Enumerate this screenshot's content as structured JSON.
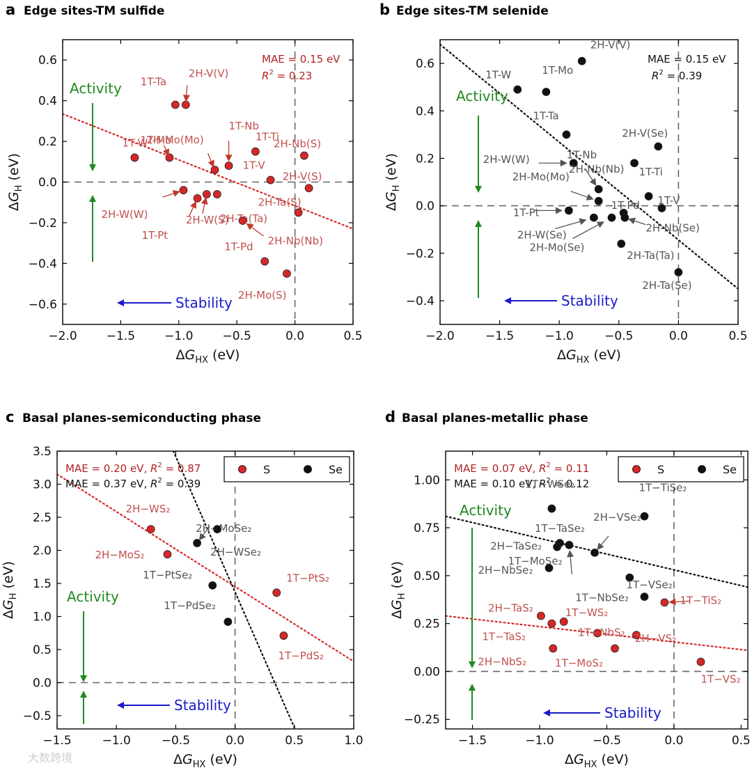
{
  "watermark": "大数跨境",
  "chart_data": [
    {
      "type": "scatter",
      "letter": "a",
      "title": "Edge sites-TM sulfide",
      "xlabel": "ΔG_HX (eV)",
      "ylabel": "ΔG_H (eV)",
      "xlim": [
        -2.0,
        0.5
      ],
      "ylim": [
        -0.7,
        0.7
      ],
      "xticks": [
        -2.0,
        -1.5,
        -1.0,
        -0.5,
        0.0,
        0.5
      ],
      "xtick_labels": [
        "−2.0",
        "−1.5",
        "−1.0",
        "−0.5",
        "0.0",
        "0.5"
      ],
      "yticks": [
        -0.6,
        -0.4,
        -0.2,
        0.0,
        0.2,
        0.4,
        0.6
      ],
      "ytick_labels": [
        "−0.6",
        "−0.4",
        "−0.2",
        "0.0",
        "0.2",
        "0.4",
        "0.6"
      ],
      "mae": "MAE = 0.15 eV",
      "r2": "= 0.23",
      "stat_color": "#b22222",
      "activity": "Activity",
      "stability": "Stability",
      "fit_color": "#d62728",
      "fit_line": [
        [
          -2.0,
          0.335
        ],
        [
          0.5,
          -0.23
        ]
      ],
      "points": [
        {
          "label": "1T-W",
          "x": -1.38,
          "y": 0.12,
          "color": "#d62728"
        },
        {
          "label": "1T-Mo",
          "x": -1.08,
          "y": 0.12,
          "color": "#d62728"
        },
        {
          "label": "1T-Ta",
          "x": -1.03,
          "y": 0.38,
          "color": "#d62728"
        },
        {
          "label": "2H-V(V)",
          "x": -0.94,
          "y": 0.38,
          "color": "#d62728"
        },
        {
          "label": "2H-Mo(Mo)",
          "x": -0.69,
          "y": 0.06,
          "color": "#d62728"
        },
        {
          "label": "1T-Nb",
          "x": -0.57,
          "y": 0.08,
          "color": "#d62728"
        },
        {
          "label": "1T-Ti",
          "x": -0.34,
          "y": 0.15,
          "color": "#d62728"
        },
        {
          "label": "2H-Nb(S)",
          "x": 0.08,
          "y": 0.13,
          "color": "#d62728"
        },
        {
          "label": "1T-V",
          "x": -0.21,
          "y": 0.01,
          "color": "#d62728"
        },
        {
          "label": "2H-V(S)",
          "x": 0.12,
          "y": -0.03,
          "color": "#d62728"
        },
        {
          "label": "2H-W(W)",
          "x": -0.96,
          "y": -0.04,
          "color": "#d62728"
        },
        {
          "label": "1T-Pt",
          "x": -0.84,
          "y": -0.08,
          "color": "#d62728"
        },
        {
          "label": "2H-W(S)",
          "x": -0.76,
          "y": -0.06,
          "color": "#d62728"
        },
        {
          "label": "2H-Ta(Ta)",
          "x": -0.67,
          "y": -0.06,
          "color": "#d62728"
        },
        {
          "label": "2H-Ta(S)",
          "x": 0.03,
          "y": -0.15,
          "color": "#d62728"
        },
        {
          "label": "2H-Nb(Nb)",
          "x": -0.45,
          "y": -0.19,
          "color": "#d62728"
        },
        {
          "label": "1T-Pd",
          "x": -0.26,
          "y": -0.39,
          "color": "#d62728"
        },
        {
          "label": "2H-Mo(S)",
          "x": -0.07,
          "y": -0.45,
          "color": "#d62728"
        }
      ]
    },
    {
      "type": "scatter",
      "letter": "b",
      "title": "Edge sites-TM selenide",
      "xlabel": "ΔG_HX (eV)",
      "ylabel": "ΔG_H (eV)",
      "xlim": [
        -2.0,
        0.5
      ],
      "ylim": [
        -0.5,
        0.7
      ],
      "xticks": [
        -2.0,
        -1.5,
        -1.0,
        -0.5,
        0.0,
        0.5
      ],
      "xtick_labels": [
        "−2.0",
        "−1.5",
        "−1.0",
        "−0.5",
        "0.0",
        "0.5"
      ],
      "yticks": [
        -0.4,
        -0.2,
        0.0,
        0.2,
        0.4,
        0.6
      ],
      "ytick_labels": [
        "−0.4",
        "−0.2",
        "0.0",
        "0.2",
        "0.4",
        "0.6"
      ],
      "mae": "MAE = 0.15 eV",
      "r2": "= 0.39",
      "stat_color": "#111111",
      "activity": "Activity",
      "stability": "Stability",
      "fit_color": "#111111",
      "fit_line": [
        [
          -2.0,
          0.68
        ],
        [
          0.5,
          -0.35
        ]
      ],
      "points": [
        {
          "label": "2H-V(V)",
          "x": -0.81,
          "y": 0.61,
          "color": "#111111"
        },
        {
          "label": "1T-W",
          "x": -1.35,
          "y": 0.49,
          "color": "#111111"
        },
        {
          "label": "1T-Mo",
          "x": -1.11,
          "y": 0.48,
          "color": "#111111"
        },
        {
          "label": "1T-Ta",
          "x": -0.94,
          "y": 0.3,
          "color": "#111111"
        },
        {
          "label": "2H-V(Se)",
          "x": -0.17,
          "y": 0.25,
          "color": "#111111"
        },
        {
          "label": "2H-W(W)",
          "x": -0.88,
          "y": 0.18,
          "color": "#111111"
        },
        {
          "label": "2H-Nb(Nb)",
          "x": -0.37,
          "y": 0.18,
          "color": "#111111"
        },
        {
          "label": "1T-Nb",
          "x": -0.67,
          "y": 0.07,
          "color": "#111111"
        },
        {
          "label": "2H-Mo(Mo)",
          "x": -0.67,
          "y": 0.02,
          "color": "#111111"
        },
        {
          "label": "1T-Ti",
          "x": -0.25,
          "y": 0.04,
          "color": "#111111"
        },
        {
          "label": "1T-V",
          "x": -0.14,
          "y": -0.01,
          "color": "#111111"
        },
        {
          "label": "1T-Pd",
          "x": -0.46,
          "y": -0.03,
          "color": "#111111"
        },
        {
          "label": "1T-Pt",
          "x": -0.92,
          "y": -0.02,
          "color": "#111111"
        },
        {
          "label": "2H-W(Se)",
          "x": -0.71,
          "y": -0.05,
          "color": "#111111"
        },
        {
          "label": "2H-Mo(Se)",
          "x": -0.56,
          "y": -0.05,
          "color": "#111111"
        },
        {
          "label": "2H-Nb(Se)",
          "x": -0.45,
          "y": -0.05,
          "color": "#111111"
        },
        {
          "label": "2H-Ta(Ta)",
          "x": -0.48,
          "y": -0.16,
          "color": "#111111"
        },
        {
          "label": "2H-Ta(Se)",
          "x": 0.0,
          "y": -0.28,
          "color": "#111111"
        }
      ]
    },
    {
      "type": "scatter",
      "letter": "c",
      "title": "Basal planes-semiconducting phase",
      "xlabel": "ΔG_HX (eV)",
      "ylabel": "ΔG_H (eV)",
      "xlim": [
        -1.5,
        1.0
      ],
      "ylim": [
        -0.7,
        3.5
      ],
      "xticks": [
        -1.5,
        -1.0,
        -0.5,
        0.0,
        0.5,
        1.0
      ],
      "xtick_labels": [
        "−1.5",
        "−1.0",
        "−0.5",
        "0.0",
        "0.5",
        "1.0"
      ],
      "yticks": [
        -0.5,
        0.0,
        0.5,
        1.0,
        1.5,
        2.0,
        2.5,
        3.0,
        3.5
      ],
      "ytick_labels": [
        "−0.5",
        "0.0",
        "0.5",
        "1.0",
        "1.5",
        "2.0",
        "2.5",
        "3.0",
        "3.5"
      ],
      "stats": [
        {
          "mae": "MAE = 0.20 eV,",
          "r2": "= 0.87",
          "color": "#b22222"
        },
        {
          "mae": "MAE = 0.37 eV,",
          "r2": "= 0.39",
          "color": "#111111"
        }
      ],
      "legend": [
        {
          "name": "S",
          "color": "#d62728"
        },
        {
          "name": "Se",
          "color": "#111111"
        }
      ],
      "activity": "Activity",
      "stability": "Stability",
      "fit_lines": [
        {
          "color": "#d62728",
          "pts": [
            [
              -1.5,
              3.15
            ],
            [
              1.0,
              0.32
            ]
          ]
        },
        {
          "color": "#111111",
          "pts": [
            [
              -0.52,
              3.5
            ],
            [
              0.5,
              -0.68
            ]
          ]
        }
      ],
      "points": [
        {
          "label": "2H−WS₂",
          "x": -0.71,
          "y": 2.32,
          "color": "#d62728"
        },
        {
          "label": "2H−MoS₂",
          "x": -0.57,
          "y": 1.94,
          "color": "#d62728"
        },
        {
          "label": "1T−PtS₂",
          "x": 0.35,
          "y": 1.36,
          "color": "#d62728"
        },
        {
          "label": "1T−PdS₂",
          "x": 0.41,
          "y": 0.71,
          "color": "#d62728"
        },
        {
          "label": "2H−MoSe₂",
          "x": -0.32,
          "y": 2.11,
          "color": "#111111"
        },
        {
          "label": "2H−WSe₂",
          "x": -0.15,
          "y": 2.32,
          "color": "#111111"
        },
        {
          "label": "1T−PtSe₂",
          "x": -0.19,
          "y": 1.47,
          "color": "#111111"
        },
        {
          "label": "1T−PdSe₂",
          "x": -0.06,
          "y": 0.92,
          "color": "#111111"
        }
      ]
    },
    {
      "type": "scatter",
      "letter": "d",
      "title": "Basal planes-metallic phase",
      "xlabel": "ΔG_HX (eV)",
      "ylabel": "ΔG_H (eV)",
      "xlim": [
        -1.7,
        0.55
      ],
      "ylim": [
        -0.3,
        1.15
      ],
      "xticks": [
        -1.5,
        -1.0,
        -0.5,
        0.0,
        0.5
      ],
      "xtick_labels": [
        "−1.5",
        "−1.0",
        "−0.5",
        "0.0",
        "0.5"
      ],
      "yticks": [
        -0.25,
        0.0,
        0.25,
        0.5,
        0.75,
        1.0
      ],
      "ytick_labels": [
        "−0.25",
        "0.00",
        "0.25",
        "0.50",
        "0.75",
        "1.00"
      ],
      "stats": [
        {
          "mae": "MAE = 0.07 eV,",
          "r2": "= 0.11",
          "color": "#b22222"
        },
        {
          "mae": "MAE = 0.10 eV,",
          "r2": "= 0.12",
          "color": "#111111"
        }
      ],
      "legend": [
        {
          "name": "S",
          "color": "#d62728"
        },
        {
          "name": "Se",
          "color": "#111111"
        }
      ],
      "activity": "Activity",
      "stability": "Stability",
      "fit_lines": [
        {
          "color": "#111111",
          "pts": [
            [
              -1.7,
              0.81
            ],
            [
              0.55,
              0.44
            ]
          ]
        },
        {
          "color": "#d62728",
          "pts": [
            [
              -1.7,
              0.29
            ],
            [
              0.55,
              0.11
            ]
          ]
        }
      ],
      "points": [
        {
          "label": "1T−WSe₂",
          "x": -0.91,
          "y": 0.85,
          "color": "#111111"
        },
        {
          "label": "1T−TiSe₂",
          "x": -0.22,
          "y": 0.81,
          "color": "#111111"
        },
        {
          "label": "1T−TaSe₂",
          "x": -0.85,
          "y": 0.67,
          "color": "#111111"
        },
        {
          "label": "2H−TaSe₂",
          "x": -0.87,
          "y": 0.65,
          "color": "#111111"
        },
        {
          "label": "1T−MoSe₂",
          "x": -0.78,
          "y": 0.66,
          "color": "#111111"
        },
        {
          "label": "2H−VSe₂",
          "x": -0.59,
          "y": 0.62,
          "color": "#111111"
        },
        {
          "label": "2H−NbSe₂",
          "x": -0.93,
          "y": 0.54,
          "color": "#111111"
        },
        {
          "label": "1T−NbSe₂",
          "x": -0.33,
          "y": 0.49,
          "color": "#111111"
        },
        {
          "label": "1T−VSe₂",
          "x": -0.22,
          "y": 0.39,
          "color": "#111111"
        },
        {
          "label": "1T−TiS₂",
          "x": -0.07,
          "y": 0.36,
          "color": "#d62728"
        },
        {
          "label": "2H−TaS₂",
          "x": -0.99,
          "y": 0.29,
          "color": "#d62728"
        },
        {
          "label": "1T−WS₂",
          "x": -0.82,
          "y": 0.26,
          "color": "#d62728"
        },
        {
          "label": "1T−TaS₂",
          "x": -0.91,
          "y": 0.25,
          "color": "#d62728"
        },
        {
          "label": "1T−NbS₂",
          "x": -0.57,
          "y": 0.2,
          "color": "#d62728"
        },
        {
          "label": "2H−VS₂",
          "x": -0.28,
          "y": 0.19,
          "color": "#d62728"
        },
        {
          "label": "2H−NbS₂",
          "x": -0.9,
          "y": 0.12,
          "color": "#d62728"
        },
        {
          "label": "1T−MoS₂",
          "x": -0.44,
          "y": 0.12,
          "color": "#d62728"
        },
        {
          "label": "1T−VS₂",
          "x": 0.2,
          "y": 0.05,
          "color": "#d62728"
        }
      ]
    }
  ]
}
